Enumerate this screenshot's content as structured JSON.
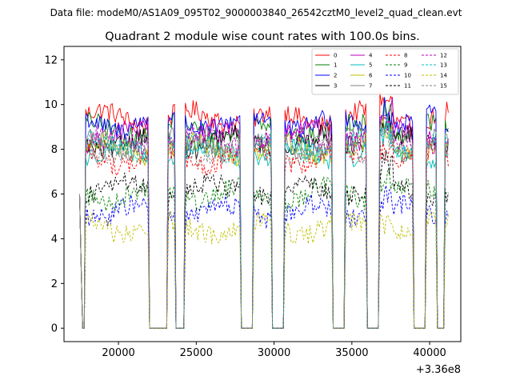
{
  "chart_data": {
    "type": "line",
    "suptitle": "Data file: modeM0/AS1A09_095T02_9000003840_26542cztM0_level2_quad_clean.evt",
    "title": "Quadrant 2 module wise count rates with 100.0s bins.",
    "xlabel": "",
    "ylabel": "",
    "x_offset_label": "+3.36e8",
    "xlim": [
      16500,
      42000
    ],
    "ylim": [
      -0.6,
      12.6
    ],
    "xticks": [
      20000,
      25000,
      30000,
      35000,
      40000
    ],
    "xtick_labels": [
      "20000",
      "25000",
      "30000",
      "35000",
      "40000"
    ],
    "yticks": [
      0,
      2,
      4,
      6,
      8,
      10,
      12
    ],
    "ytick_labels": [
      "0",
      "2",
      "4",
      "6",
      "8",
      "10",
      "12"
    ],
    "legend_position": "top-right",
    "active_intervals": [
      [
        17500,
        17600
      ],
      [
        17900,
        21950
      ],
      [
        23150,
        23650
      ],
      [
        24250,
        27850
      ],
      [
        28700,
        29850
      ],
      [
        30650,
        33700
      ],
      [
        34550,
        35950
      ],
      [
        36800,
        38950
      ],
      [
        39750,
        40450
      ],
      [
        41000,
        41250
      ]
    ],
    "x_start": 17500,
    "x_step": 100,
    "x_count": 238,
    "series": [
      {
        "name": "0",
        "color": "#ff0000",
        "dash": "solid",
        "level": 9.4
      },
      {
        "name": "1",
        "color": "#008000",
        "dash": "solid",
        "level": 8.9
      },
      {
        "name": "2",
        "color": "#0000ff",
        "dash": "solid",
        "level": 9.2
      },
      {
        "name": "3",
        "color": "#000000",
        "dash": "solid",
        "level": 8.3
      },
      {
        "name": "4",
        "color": "#bf00bf",
        "dash": "solid",
        "level": 8.6
      },
      {
        "name": "5",
        "color": "#00bfbf",
        "dash": "solid",
        "level": 7.8
      },
      {
        "name": "6",
        "color": "#bfbf00",
        "dash": "solid",
        "level": 8.0
      },
      {
        "name": "7",
        "color": "#808080",
        "dash": "solid",
        "level": 8.2
      },
      {
        "name": "8",
        "color": "#ff0000",
        "dash": "dashed",
        "level": 7.6
      },
      {
        "name": "9",
        "color": "#008000",
        "dash": "dashed",
        "level": 6.0
      },
      {
        "name": "10",
        "color": "#0000ff",
        "dash": "dashed",
        "level": 5.2
      },
      {
        "name": "11",
        "color": "#000000",
        "dash": "dashed",
        "level": 6.2
      },
      {
        "name": "12",
        "color": "#bf00bf",
        "dash": "dashed",
        "level": 8.4
      },
      {
        "name": "13",
        "color": "#00bfbf",
        "dash": "dashed",
        "level": 8.1
      },
      {
        "name": "14",
        "color": "#bfbf00",
        "dash": "dashed",
        "level": 4.5
      },
      {
        "name": "15",
        "color": "#808080",
        "dash": "dashed",
        "level": 8.0
      }
    ]
  }
}
